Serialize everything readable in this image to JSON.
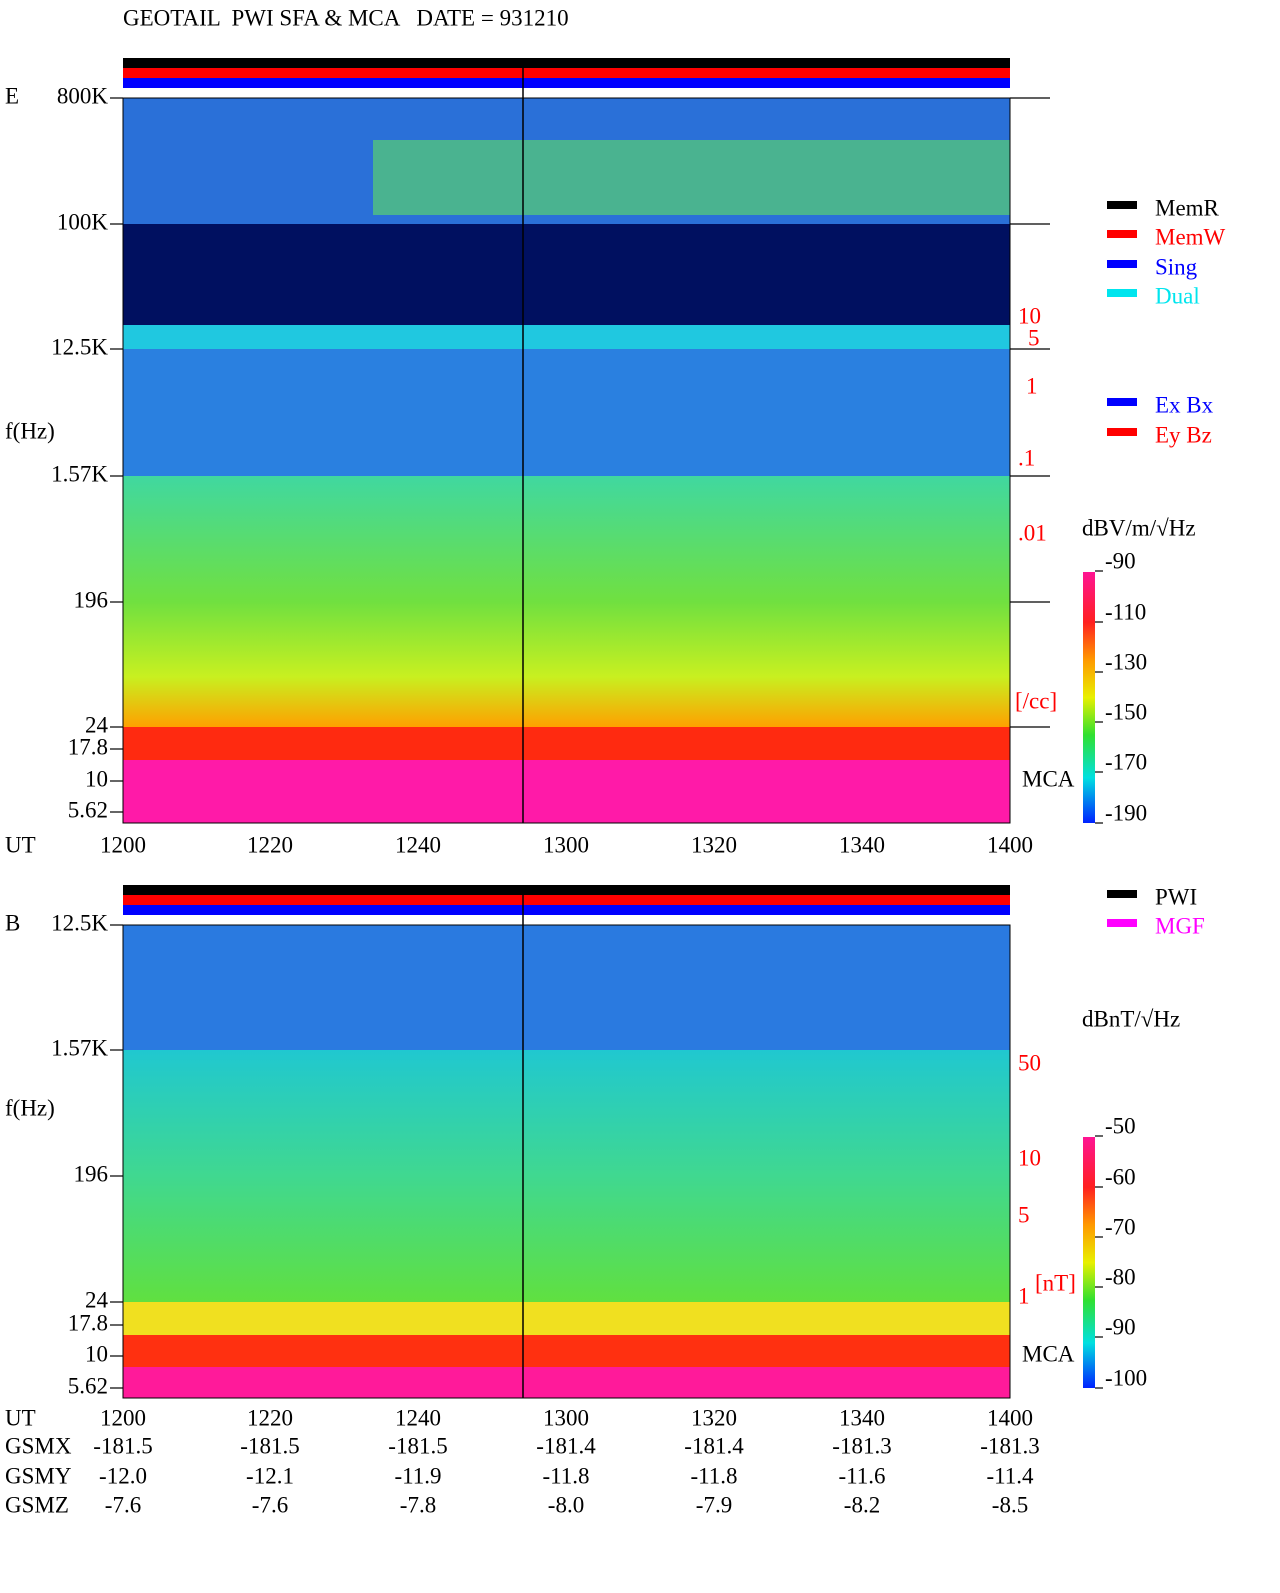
{
  "header": {
    "title": "GEOTAIL  PWI SFA & MCA   DATE = 931210"
  },
  "panels": [
    {
      "component": "E",
      "ylabel": "f(Hz)",
      "xlabel": "UT",
      "yticks": [
        "800K",
        "100K",
        "12.5K",
        "1.57K",
        "196",
        "24",
        "17.8",
        "10",
        "5.62"
      ],
      "xticks": [
        "1200",
        "1220",
        "1240",
        "1300",
        "1320",
        "1340",
        "1400"
      ],
      "right_labels": [
        "10",
        "5",
        "1",
        ".1",
        ".01",
        "[/cc]"
      ],
      "mca_label": "MCA",
      "legend": [
        {
          "name": "MemR",
          "color": "#000000"
        },
        {
          "name": "MemW",
          "color": "#ff0000"
        },
        {
          "name": "Sing",
          "color": "#0000ff"
        },
        {
          "name": "Dual",
          "color": "#00e5ee"
        }
      ],
      "legend2": [
        {
          "name": "Ex Bx",
          "color": "#0000ff"
        },
        {
          "name": "Ey Bz",
          "color": "#ff0000"
        }
      ],
      "colorbar_label": "dBV/m/√Hz",
      "colorbar_ticks": [
        "-90",
        "-110",
        "-130",
        "-150",
        "-170",
        "-190"
      ]
    },
    {
      "component": "B",
      "ylabel": "f(Hz)",
      "xlabel": "UT",
      "yticks": [
        "12.5K",
        "1.57K",
        "196",
        "24",
        "17.8",
        "10",
        "5.62"
      ],
      "xticks": [
        "1200",
        "1220",
        "1240",
        "1300",
        "1320",
        "1340",
        "1400"
      ],
      "right_labels": [
        "50",
        "10",
        "5",
        "1",
        "[nT]"
      ],
      "mca_label": "MCA",
      "legend": [
        {
          "name": "PWI",
          "color": "#000000"
        },
        {
          "name": "MGF",
          "color": "#ff00ff"
        }
      ],
      "colorbar_label": "dBnT/√Hz",
      "colorbar_ticks": [
        "-50",
        "-60",
        "-70",
        "-80",
        "-90",
        "-100"
      ]
    }
  ],
  "orbit": {
    "rows": [
      {
        "name": "GSMX",
        "values": [
          "-181.5",
          "-181.5",
          "-181.5",
          "-181.4",
          "-181.4",
          "-181.3",
          "-181.3"
        ]
      },
      {
        "name": "GSMY",
        "values": [
          "-12.0",
          "-12.1",
          "-11.9",
          "-11.8",
          "-11.8",
          "-11.6",
          "-11.4"
        ]
      },
      {
        "name": "GSMZ",
        "values": [
          "-7.6",
          "-7.6",
          "-7.8",
          "-8.0",
          "-7.9",
          "-8.2",
          "-8.5"
        ]
      }
    ]
  }
}
